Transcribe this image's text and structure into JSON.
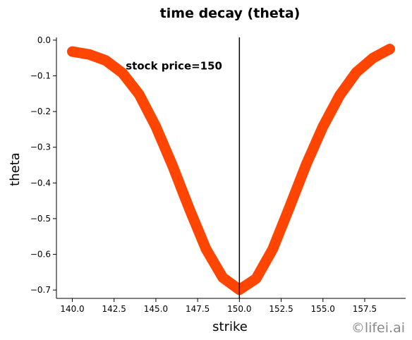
{
  "chart_data": {
    "type": "line",
    "title": "time decay (theta)",
    "xlabel": "strike",
    "ylabel": "theta",
    "xlim": [
      139.05,
      159.95
    ],
    "ylim": [
      -0.7234,
      0.0077
    ],
    "xticks": [
      140.0,
      142.5,
      145.0,
      147.5,
      150.0,
      152.5,
      155.0,
      157.5
    ],
    "xtick_labels": [
      "140.0",
      "142.5",
      "145.0",
      "147.5",
      "150.0",
      "152.5",
      "155.0",
      "157.5"
    ],
    "yticks": [
      0.0,
      -0.1,
      -0.2,
      -0.3,
      -0.4,
      -0.5,
      -0.6,
      -0.7
    ],
    "ytick_labels": [
      "0.0",
      "−0.1",
      "−0.2",
      "−0.3",
      "−0.4",
      "−0.5",
      "−0.6",
      "−0.7"
    ],
    "grid": false,
    "line_color": "#ff4500",
    "series": [
      {
        "x": [
          140,
          141,
          142,
          143,
          144,
          145,
          146,
          147,
          148,
          149,
          150,
          151,
          152,
          153,
          154,
          155,
          156,
          157,
          158,
          159
        ],
        "values": [
          -0.032,
          -0.04,
          -0.057,
          -0.092,
          -0.152,
          -0.242,
          -0.352,
          -0.472,
          -0.585,
          -0.665,
          -0.699,
          -0.668,
          -0.585,
          -0.468,
          -0.348,
          -0.242,
          -0.155,
          -0.09,
          -0.05,
          -0.025
        ]
      }
    ],
    "vline": {
      "x": 150,
      "color": "#000000"
    },
    "annotation": {
      "text": "stock price=150",
      "x": 143.2,
      "y": -0.072
    }
  },
  "watermark": "©lifei.ai"
}
